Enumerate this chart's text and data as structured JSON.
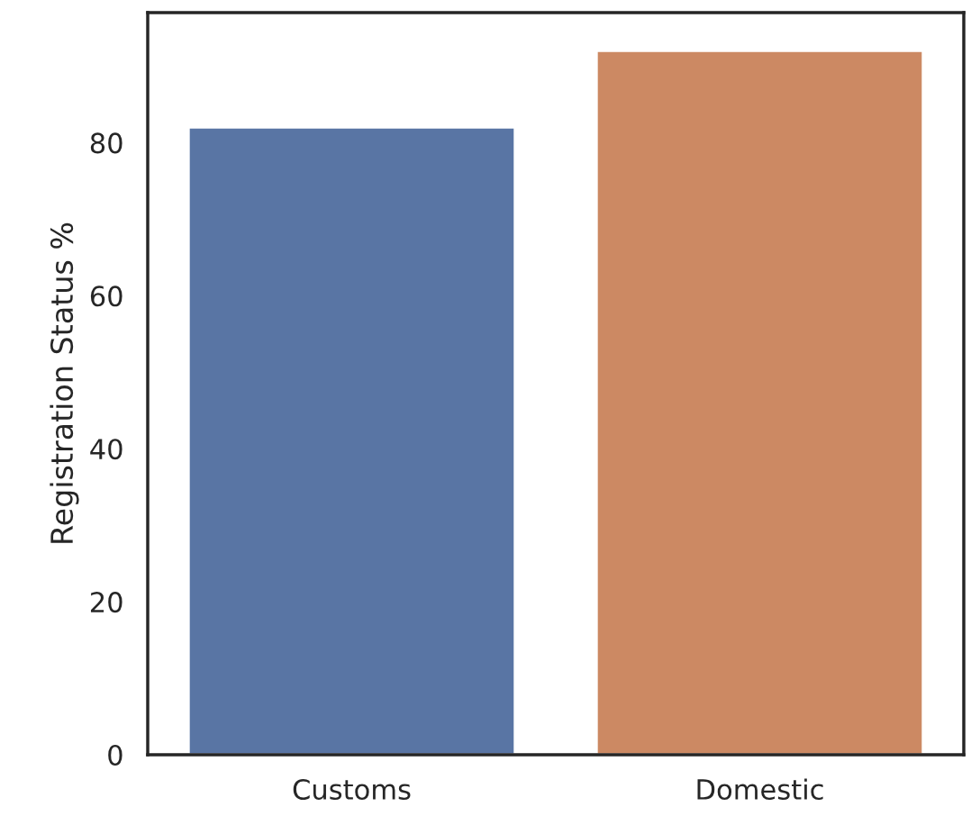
{
  "chart_data": {
    "type": "bar",
    "ylabel": "Registration Status %",
    "categories": [
      "Customs",
      "Domestic"
    ],
    "values": [
      82,
      92
    ],
    "colors": [
      "#5975a4",
      "#cc8963"
    ],
    "ylim": [
      0,
      97
    ],
    "yticks": [
      0,
      20,
      40,
      60,
      80
    ],
    "grid": false
  }
}
